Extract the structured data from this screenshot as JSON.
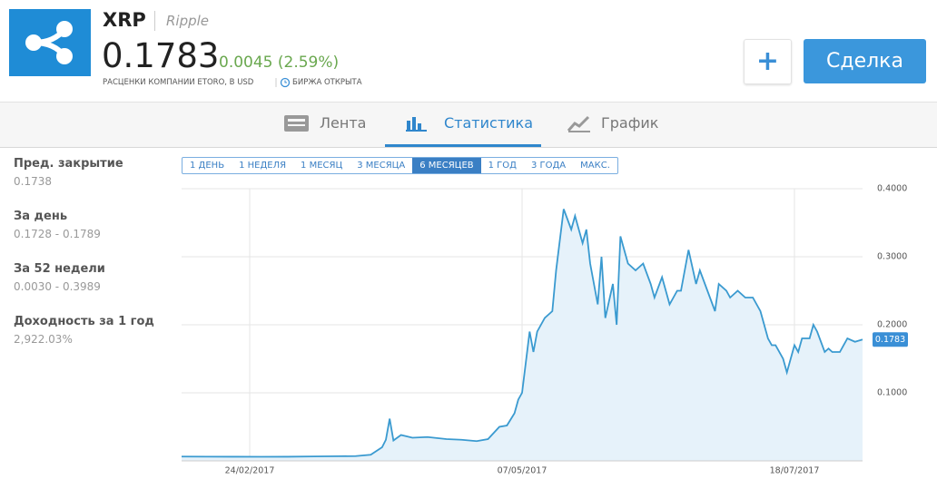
{
  "header": {
    "symbol": "XRP",
    "name": "Ripple",
    "price": "0.1783",
    "change": "0.0045 (2.59%)",
    "pricing_note": "РАСЦЕНКИ КОМПАНИИ ETORO, В USD",
    "market_status": "БИРЖА ОТКРЫТА",
    "trade_button": "Сделка"
  },
  "tabs": [
    "Лента",
    "Статистика",
    "График"
  ],
  "stats": [
    {
      "label": "Пред. закрытие",
      "value": "0.1738"
    },
    {
      "label": "За день",
      "value": "0.1728 - 0.1789"
    },
    {
      "label": "За 52 недели",
      "value": "0.0030 - 0.3989"
    },
    {
      "label": "Доходность за 1 год",
      "value": "2,922.03%"
    }
  ],
  "ranges": [
    "1 ДЕНЬ",
    "1 НЕДЕЛЯ",
    "1 МЕСЯЦ",
    "3 МЕСЯЦА",
    "6 МЕСЯЦЕВ",
    "1 ГОД",
    "3 ГОДА",
    "МАКС."
  ],
  "chart_data": {
    "type": "area",
    "color": "#3a9ad0",
    "fill": "#e6f2fa",
    "grid": true,
    "x": [
      "2017-02-06",
      "2017-02-13",
      "2017-02-20",
      "2017-02-27",
      "2017-03-06",
      "2017-03-13",
      "2017-03-20",
      "2017-03-24",
      "2017-03-28",
      "2017-03-31",
      "2017-04-01",
      "2017-04-02",
      "2017-04-03",
      "2017-04-05",
      "2017-04-08",
      "2017-04-12",
      "2017-04-17",
      "2017-04-21",
      "2017-04-25",
      "2017-04-28",
      "2017-05-01",
      "2017-05-03",
      "2017-05-05",
      "2017-05-06",
      "2017-05-07",
      "2017-05-09",
      "2017-05-10",
      "2017-05-11",
      "2017-05-13",
      "2017-05-15",
      "2017-05-16",
      "2017-05-18",
      "2017-05-20",
      "2017-05-21",
      "2017-05-23",
      "2017-05-24",
      "2017-05-25",
      "2017-05-27",
      "2017-05-28",
      "2017-05-29",
      "2017-05-31",
      "2017-06-01",
      "2017-06-02",
      "2017-06-04",
      "2017-06-06",
      "2017-06-08",
      "2017-06-10",
      "2017-06-11",
      "2017-06-13",
      "2017-06-15",
      "2017-06-17",
      "2017-06-18",
      "2017-06-20",
      "2017-06-22",
      "2017-06-23",
      "2017-06-25",
      "2017-06-27",
      "2017-06-28",
      "2017-06-30",
      "2017-07-01",
      "2017-07-03",
      "2017-07-05",
      "2017-07-07",
      "2017-07-09",
      "2017-07-11",
      "2017-07-12",
      "2017-07-13",
      "2017-07-15",
      "2017-07-16",
      "2017-07-18",
      "2017-07-19",
      "2017-07-20",
      "2017-07-22",
      "2017-07-23",
      "2017-07-24",
      "2017-07-26",
      "2017-07-27",
      "2017-07-28",
      "2017-07-30",
      "2017-08-01",
      "2017-08-03",
      "2017-08-05"
    ],
    "values": [
      0.0063,
      0.0062,
      0.0061,
      0.006,
      0.0061,
      0.0065,
      0.0068,
      0.007,
      0.009,
      0.02,
      0.031,
      0.062,
      0.03,
      0.038,
      0.034,
      0.035,
      0.032,
      0.031,
      0.029,
      0.032,
      0.05,
      0.052,
      0.07,
      0.09,
      0.1,
      0.19,
      0.16,
      0.19,
      0.21,
      0.22,
      0.28,
      0.37,
      0.34,
      0.36,
      0.32,
      0.34,
      0.29,
      0.23,
      0.3,
      0.21,
      0.26,
      0.2,
      0.33,
      0.29,
      0.28,
      0.29,
      0.26,
      0.24,
      0.27,
      0.23,
      0.25,
      0.25,
      0.31,
      0.26,
      0.28,
      0.25,
      0.22,
      0.26,
      0.25,
      0.24,
      0.25,
      0.24,
      0.24,
      0.22,
      0.18,
      0.17,
      0.17,
      0.15,
      0.13,
      0.17,
      0.16,
      0.18,
      0.18,
      0.2,
      0.19,
      0.16,
      0.165,
      0.16,
      0.16,
      0.18,
      0.175,
      0.1783
    ],
    "xlim": [
      "2017-02-06",
      "2017-08-05"
    ],
    "xticks": [
      {
        "value": "2017-02-24",
        "label": "24/02/2017"
      },
      {
        "value": "2017-05-07",
        "label": "07/05/2017"
      },
      {
        "value": "2017-07-18",
        "label": "18/07/2017"
      }
    ],
    "ylim": [
      0,
      0.4
    ],
    "yticks": [
      {
        "value": 0.1,
        "label": "0.1000"
      },
      {
        "value": 0.2,
        "label": "0.2000"
      },
      {
        "value": 0.3,
        "label": "0.3000"
      },
      {
        "value": 0.4,
        "label": "0.4000"
      }
    ],
    "current": 0.1783
  }
}
